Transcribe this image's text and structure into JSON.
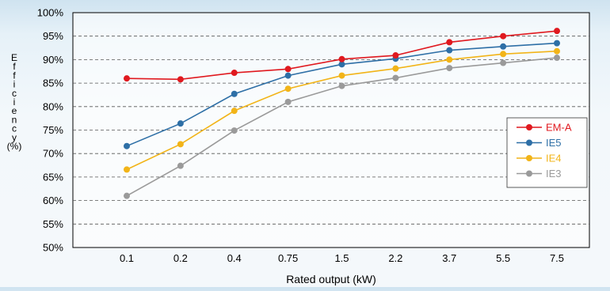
{
  "chart_data": {
    "type": "line",
    "xlabel": "Rated output (kW)",
    "ylabel": "Efficiency (%)",
    "categories": [
      "0.1",
      "0.2",
      "0.4",
      "0.75",
      "1.5",
      "2.2",
      "3.7",
      "5.5",
      "7.5"
    ],
    "y_ticks": [
      "50%",
      "55%",
      "60%",
      "65%",
      "70%",
      "75%",
      "80%",
      "85%",
      "90%",
      "95%",
      "100%"
    ],
    "ylim": [
      50,
      100
    ],
    "grid": "horizontal dashed",
    "legend_position": "right",
    "series": [
      {
        "name": "EM-A",
        "color": "#e0191f",
        "values": [
          86.0,
          85.8,
          87.2,
          88.0,
          90.1,
          90.9,
          93.7,
          95.0,
          96.1
        ]
      },
      {
        "name": "IE5",
        "color": "#2e6fa6",
        "values": [
          71.6,
          76.4,
          82.7,
          86.6,
          89.0,
          90.2,
          92.0,
          92.8,
          93.5
        ]
      },
      {
        "name": "IE4",
        "color": "#f2b418",
        "values": [
          66.6,
          72.0,
          79.1,
          83.8,
          86.6,
          88.1,
          90.0,
          91.2,
          91.8
        ]
      },
      {
        "name": "IE3",
        "color": "#9a9a9a",
        "values": [
          61.0,
          67.4,
          74.9,
          81.0,
          84.4,
          86.1,
          88.2,
          89.3,
          90.4
        ]
      }
    ]
  }
}
